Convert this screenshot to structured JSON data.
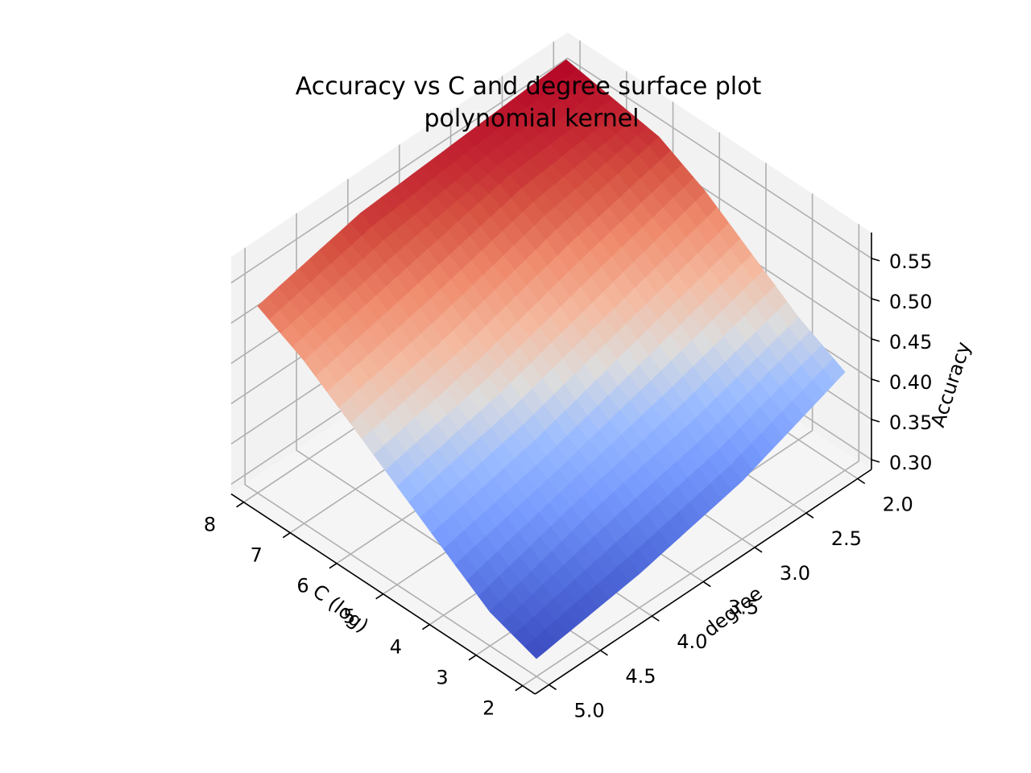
{
  "chart_data": {
    "type": "surface",
    "title_line1": "Accuracy vs C and degree surface plot",
    "title_line2": "polynomial kernel",
    "xlabel": "C (log)",
    "ylabel": "degree",
    "zlabel": "Accuracy",
    "colormap": "coolwarm",
    "xlim": [
      2,
      8
    ],
    "ylim": [
      2,
      5
    ],
    "zlim": [
      0.3,
      0.57
    ],
    "x_ticks": [
      "2",
      "3",
      "4",
      "5",
      "6",
      "7",
      "8"
    ],
    "y_ticks": [
      "2.0",
      "2.5",
      "3.0",
      "3.5",
      "4.0",
      "4.5",
      "5.0"
    ],
    "z_ticks": [
      "0.30",
      "0.35",
      "0.40",
      "0.45",
      "0.50",
      "0.55"
    ],
    "c_values": [
      2,
      3,
      4,
      5,
      6,
      7,
      8
    ],
    "degree_values": [
      2,
      3,
      4,
      5
    ],
    "accuracy": [
      [
        0.41,
        0.36,
        0.33,
        0.31
      ],
      [
        0.44,
        0.4,
        0.37,
        0.33
      ],
      [
        0.48,
        0.44,
        0.4,
        0.37
      ],
      [
        0.52,
        0.48,
        0.44,
        0.41
      ],
      [
        0.55,
        0.52,
        0.48,
        0.45
      ],
      [
        0.56,
        0.55,
        0.52,
        0.49
      ],
      [
        0.57,
        0.56,
        0.55,
        0.52
      ]
    ]
  }
}
